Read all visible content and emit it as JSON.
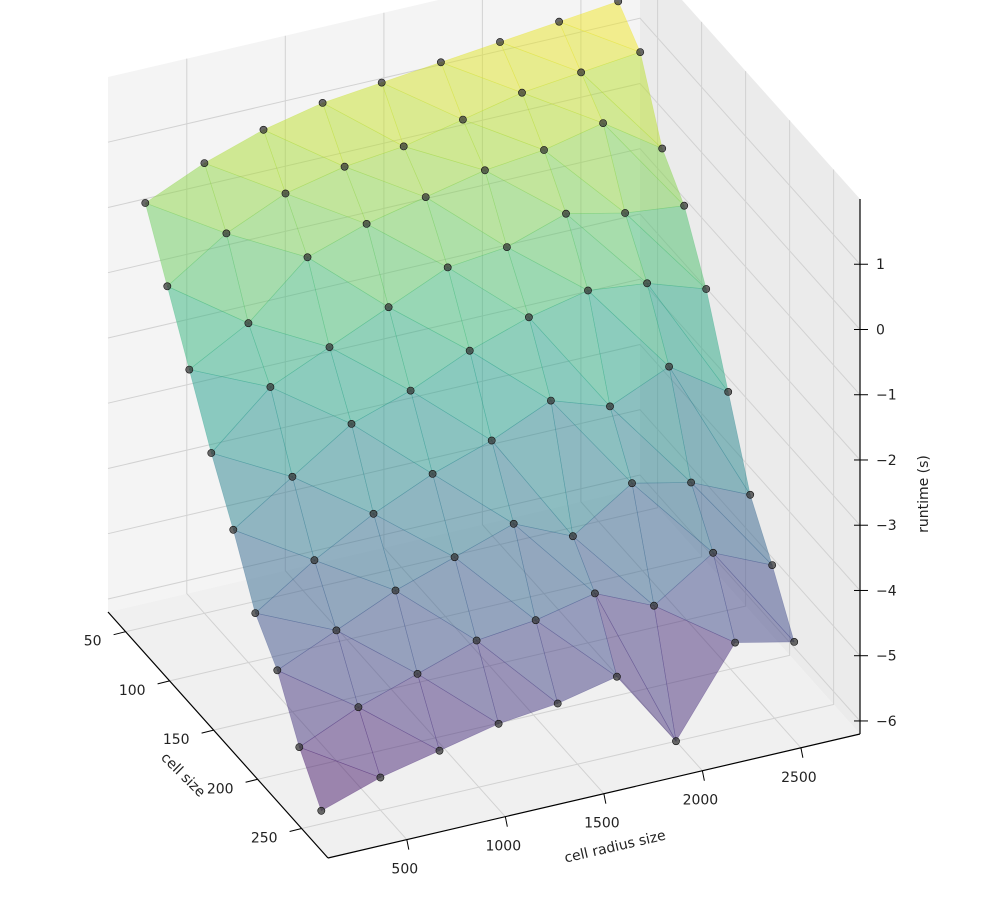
{
  "chart_data": {
    "type": "surface3d",
    "title": "",
    "xlabel": "cell size",
    "ylabel": "cell radius size",
    "zlabel": "runtime (s)",
    "x_ticks": [
      50,
      100,
      150,
      200,
      250
    ],
    "y_ticks": [
      500,
      1000,
      1500,
      2000,
      2500
    ],
    "z_ticks": [
      1,
      0,
      -1,
      -2,
      -3,
      -4,
      -5,
      -6
    ],
    "z_tick_labels": [
      "1",
      "0",
      "−1",
      "−2",
      "−3",
      "−4",
      "−5",
      "−6"
    ],
    "xlim": [
      30,
      280
    ],
    "ylim": [
      100,
      2800
    ],
    "zlim": [
      -6.2,
      2.0
    ],
    "colormap": "viridis",
    "surface_alpha": 0.5,
    "marker_color": "#3a3a3a",
    "grid": true,
    "x": [
      50,
      75,
      100,
      125,
      150,
      175,
      200,
      225,
      250
    ],
    "y": [
      200,
      500,
      800,
      1100,
      1400,
      1700,
      2000,
      2300,
      2600
    ],
    "z": [
      [
        0.3,
        0.7,
        1.0,
        1.2,
        1.3,
        1.4,
        1.5,
        1.6,
        1.7
      ],
      [
        -0.6,
        0.0,
        0.4,
        0.6,
        0.7,
        0.9,
        1.1,
        1.2,
        1.3
      ],
      [
        -1.5,
        -1.0,
        -0.2,
        0.1,
        0.3,
        0.5,
        0.6,
        0.8,
        0.2
      ],
      [
        -2.4,
        -1.6,
        -1.2,
        -0.8,
        -0.4,
        -0.3,
        0.0,
        -0.2,
        -0.3
      ],
      [
        -3.2,
        -2.6,
        -2.0,
        -1.7,
        -1.3,
        -1.0,
        -0.8,
        -0.9,
        -1.2
      ],
      [
        -4.1,
        -3.5,
        -3.0,
        -2.6,
        -2.3,
        -1.9,
        -2.2,
        -1.8,
        -2.4
      ],
      [
        -4.6,
        -4.2,
        -3.8,
        -3.5,
        -3.2,
        -3.6,
        -3.0,
        -3.2,
        -3.6
      ],
      [
        -5.4,
        -5.0,
        -4.7,
        -4.4,
        -4.3,
        -4.1,
        -4.5,
        -3.9,
        -4.3
      ],
      [
        -6.0,
        -5.7,
        -5.5,
        -5.3,
        -5.2,
        -5.0,
        -6.2,
        -4.9,
        -5.1
      ]
    ]
  }
}
